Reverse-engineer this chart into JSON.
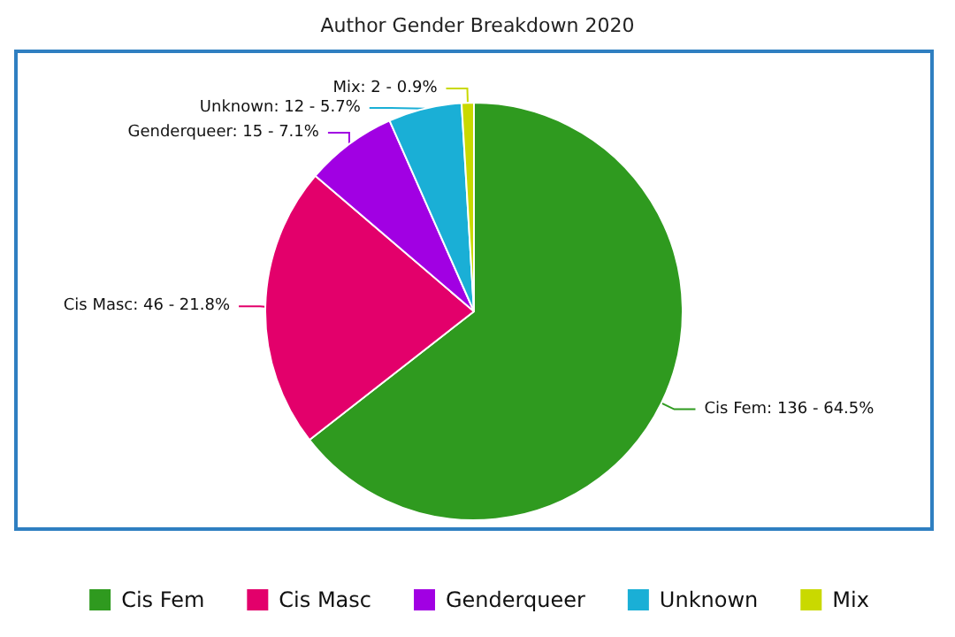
{
  "chart_data": {
    "type": "pie",
    "title": "Author Gender Breakdown 2020",
    "categories": [
      "Cis Fem",
      "Cis Masc",
      "Genderqueer",
      "Unknown",
      "Mix"
    ],
    "values": [
      136,
      46,
      15,
      12,
      2
    ],
    "colors": [
      "#2f9a1f",
      "#e3006b",
      "#a100e3",
      "#1aafd6",
      "#c9d900"
    ],
    "value_labels": [
      "Cis Fem: 136 - 64.5%",
      "Cis Masc: 46 - 21.8%",
      "Genderqueer: 15 - 7.1%",
      "Unknown: 12 - 5.7%",
      "Mix: 2 - 0.9%"
    ],
    "legend": "bottom"
  }
}
